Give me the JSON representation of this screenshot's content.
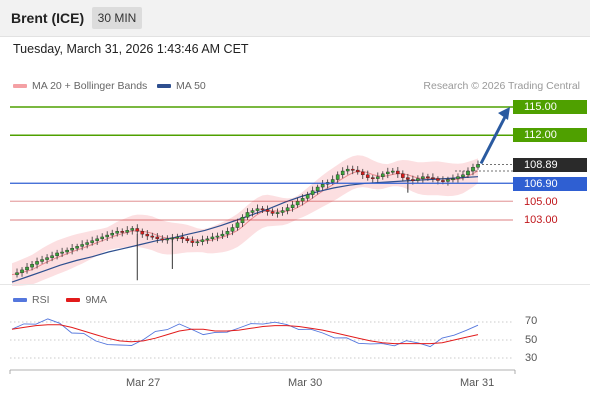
{
  "header": {
    "title": "Brent (ICE)",
    "timeframe": "30 MIN"
  },
  "datetime": "Tuesday, March 31, 2026 1:43:46 AM CET",
  "legend": {
    "bollinger_label": "MA 20 + Bollinger Bands",
    "ma50_label": "MA 50",
    "credit": "Research © 2026 Trading Central"
  },
  "rsi_legend": {
    "rsi_label": "RSI",
    "ma_label": "9MA"
  },
  "colors": {
    "resistance": "#4fa000",
    "pivot": "#2f5fd2",
    "support": "#c0161b",
    "last": "#2a2a2a",
    "bollinger": "#f5a3a8",
    "ma50": "#2e4f8f",
    "rsi": "#5577dd",
    "rsi_ma": "#e21b1b",
    "candle_up": "#3aa53a",
    "candle_down": "#d91c1c",
    "arrow": "#2a5aa0"
  },
  "chart_data": {
    "type": "candlestick",
    "instrument": "Brent (ICE)",
    "interval": "30 MIN",
    "x_ticks": [
      "Mar 27",
      "Mar 30",
      "Mar 31"
    ],
    "ylim": [
      96.0,
      116.5
    ],
    "levels": [
      {
        "value": 115.0,
        "label": "115.00",
        "kind": "resistance"
      },
      {
        "value": 112.0,
        "label": "112.00",
        "kind": "resistance"
      },
      {
        "value": 108.89,
        "label": "108.89",
        "kind": "last"
      },
      {
        "value": 106.9,
        "label": "106.90",
        "kind": "pivot"
      },
      {
        "value": 105.0,
        "label": "105.00",
        "kind": "support"
      },
      {
        "value": 103.0,
        "label": "103.00",
        "kind": "support"
      }
    ],
    "close_path": [
      97.2,
      97.4,
      97.7,
      98.0,
      98.3,
      98.6,
      98.8,
      99.0,
      99.2,
      99.5,
      99.6,
      99.8,
      100.0,
      100.2,
      100.4,
      100.6,
      100.8,
      101.0,
      101.2,
      101.4,
      101.6,
      101.8,
      101.7,
      101.9,
      102.1,
      101.8,
      101.5,
      101.3,
      101.2,
      101.0,
      100.9,
      101.0,
      101.1,
      101.2,
      101.0,
      100.8,
      100.6,
      100.7,
      100.9,
      101.0,
      101.2,
      101.3,
      101.5,
      101.8,
      102.2,
      102.7,
      103.3,
      103.8,
      104.0,
      104.2,
      104.1,
      103.9,
      103.7,
      103.8,
      104.0,
      104.3,
      104.6,
      105.0,
      105.3,
      105.7,
      106.1,
      106.5,
      106.8,
      107.0,
      107.3,
      107.8,
      108.2,
      108.4,
      108.3,
      108.1,
      107.8,
      107.5,
      107.4,
      107.6,
      107.9,
      108.1,
      108.2,
      107.9,
      107.5,
      107.3,
      107.2,
      107.4,
      107.6,
      107.5,
      107.4,
      107.2,
      107.1,
      107.3,
      107.4,
      107.6,
      107.8,
      108.2,
      108.6,
      108.9
    ],
    "ma50_path": [
      96.4,
      97.0,
      97.6,
      98.2,
      98.7,
      99.1,
      99.6,
      100.0,
      100.4,
      100.8,
      101.1,
      101.5,
      101.9,
      102.4,
      103.0,
      103.6,
      104.2,
      104.9,
      105.5,
      106.0,
      106.4,
      106.7,
      106.9,
      107.0,
      107.1,
      107.2,
      107.3,
      107.4,
      107.5,
      107.6
    ],
    "rsi": {
      "levels": [
        70,
        50,
        30
      ],
      "rsi_path": [
        62,
        66,
        70,
        72,
        68,
        60,
        55,
        50,
        46,
        42,
        46,
        50,
        58,
        64,
        66,
        62,
        58,
        56,
        60,
        64,
        66,
        70,
        69,
        66,
        64,
        60,
        58,
        54,
        50,
        48,
        46,
        44,
        46,
        48,
        46,
        45,
        50,
        56,
        62,
        64
      ],
      "ma_path": [
        62,
        64,
        66,
        67,
        67,
        64,
        60,
        56,
        52,
        49,
        48,
        49,
        52,
        56,
        60,
        62,
        62,
        60,
        60,
        61,
        63,
        65,
        66,
        66,
        65,
        63,
        61,
        58,
        55,
        52,
        49,
        47,
        46,
        46,
        46,
        46,
        47,
        50,
        53,
        56
      ]
    }
  }
}
